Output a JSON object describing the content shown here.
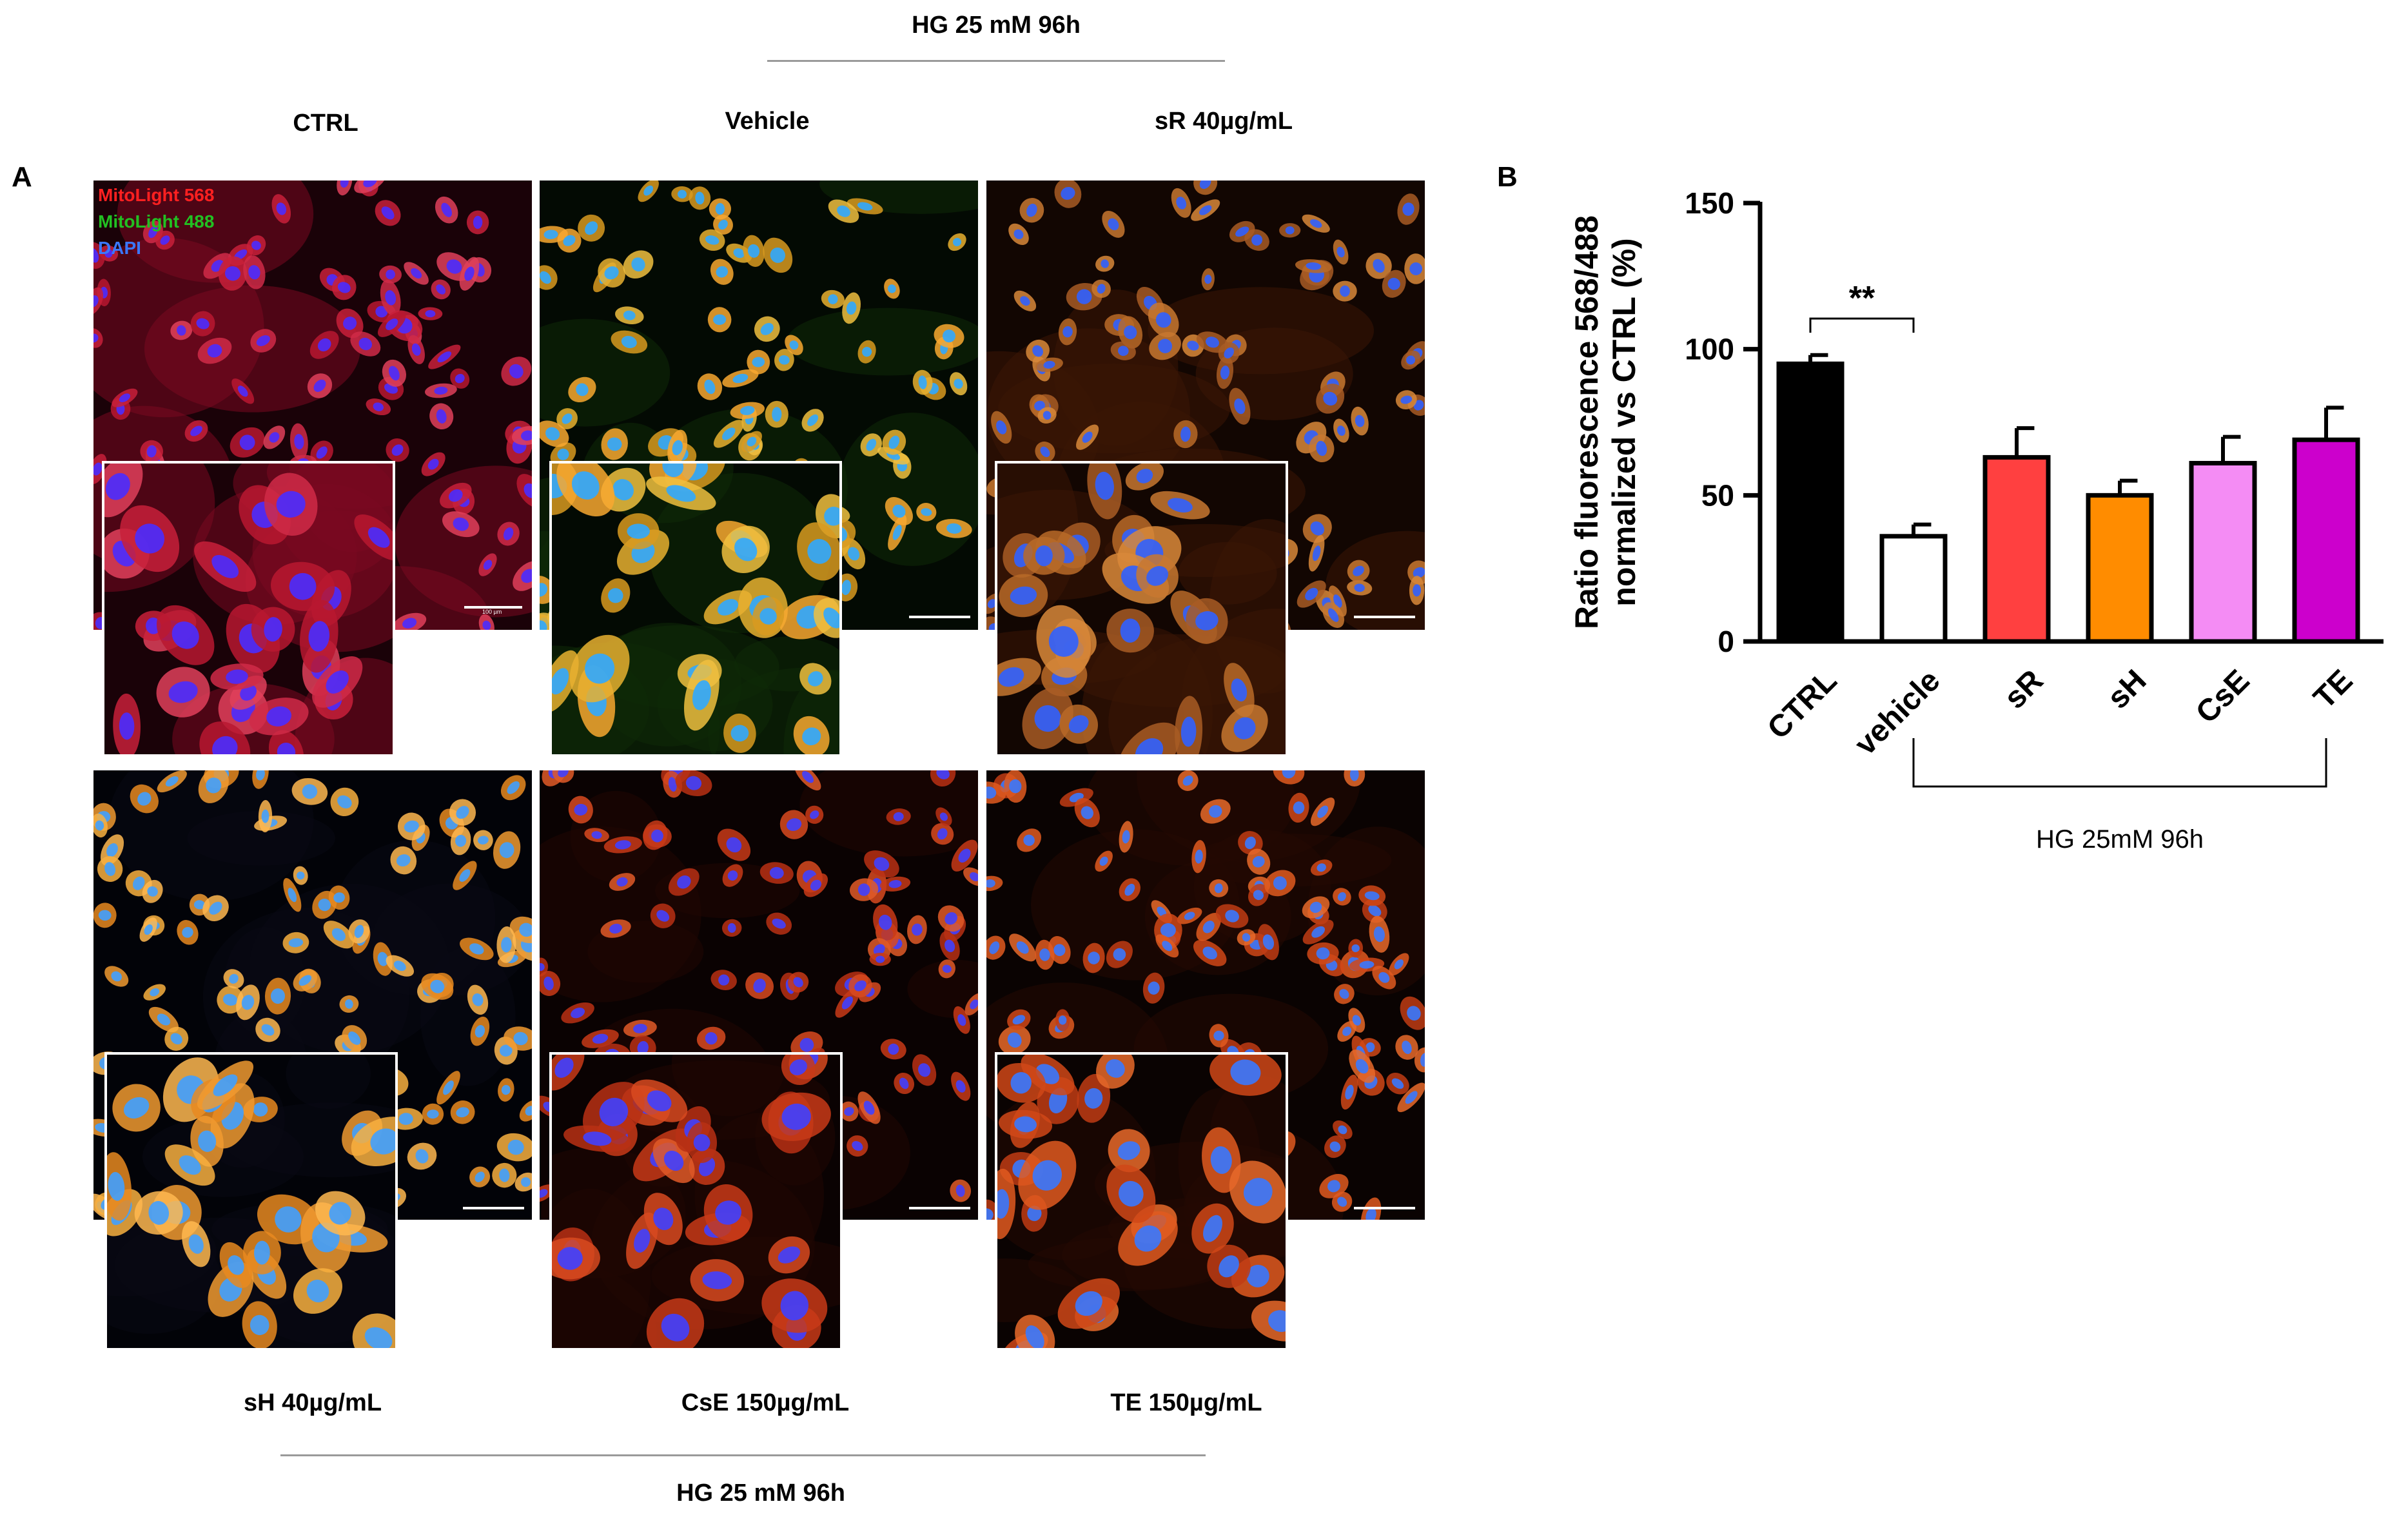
{
  "figure": {
    "top_header": "HG 25 mM 96h",
    "bottom_header": "HG 25 mM 96h",
    "panel_a_letter": "A",
    "panel_b_letter": "B",
    "scale_text": "100 µm"
  },
  "panels": [
    {
      "label": "CTRL",
      "palette": "red"
    },
    {
      "label": "Vehicle",
      "palette": "yellowgreen"
    },
    {
      "label": "sR 40µg/mL",
      "palette": "orangebrown"
    },
    {
      "label": "sH 40µg/mL",
      "palette": "orange"
    },
    {
      "label": "CsE 150µg/mL",
      "palette": "redorange"
    },
    {
      "label": "TE 150µg/mL",
      "palette": "redorange2"
    }
  ],
  "stain_legend": [
    {
      "text": "MitoLight 568",
      "color": "#ff2020"
    },
    {
      "text": "MitoLight 488",
      "color": "#22c022"
    },
    {
      "text": "DAPI",
      "color": "#3a78ff"
    }
  ],
  "chart_data": {
    "type": "bar",
    "categories": [
      "CTRL",
      "vehicle",
      "sR",
      "sH",
      "CsE",
      "TE"
    ],
    "values": [
      95,
      36,
      63,
      50,
      61,
      69
    ],
    "errors": [
      3,
      4,
      10,
      5,
      9,
      11
    ],
    "colors": [
      "#000000",
      "#ffffff",
      "#ff4040",
      "#ff8c00",
      "#f48cf4",
      "#cc00cc"
    ],
    "ylabel": "Ratio fluorescence 568/488 normalized vs CTRL (%)",
    "ylabel_line1": "Ratio fluorescence 568/488",
    "ylabel_line2": "normalized vs CTRL (%)",
    "ylim": [
      0,
      150
    ],
    "yticks": [
      0,
      50,
      100,
      150
    ],
    "significance": {
      "pair": [
        "CTRL",
        "vehicle"
      ],
      "label": "**"
    },
    "group_bracket": {
      "from": "vehicle",
      "to": "TE",
      "label": "HG 25mM 96h"
    }
  }
}
